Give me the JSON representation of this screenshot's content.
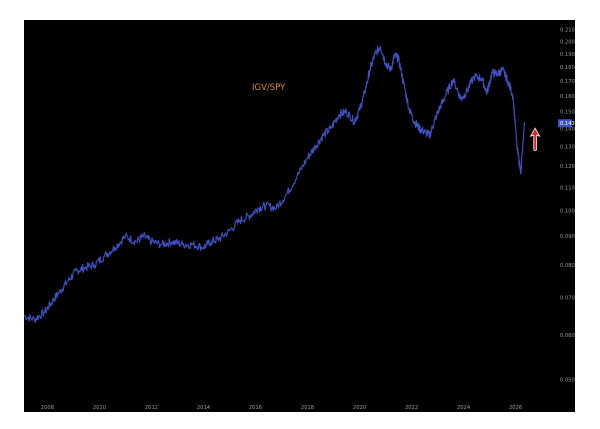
{
  "chart_data": {
    "type": "line",
    "title": "IGV/SPY",
    "xlabel": "",
    "ylabel": "",
    "x_tick_labels": [
      "2008",
      "2010",
      "2012",
      "2014",
      "2016",
      "2018",
      "2020",
      "2022",
      "2024",
      "2026"
    ],
    "y_tick_labels": [
      "0.050",
      "0.060",
      "0.070",
      "0.080",
      "0.090",
      "0.100",
      "0.110",
      "0.120",
      "0.130",
      "0.140",
      "0.150",
      "0.160",
      "0.170",
      "0.180",
      "0.190",
      "0.200",
      "0.210"
    ],
    "xlim": [
      2007.1,
      2027.4
    ],
    "ylim": [
      0.046,
      0.213
    ],
    "grid": false,
    "scale": "log",
    "series": [
      {
        "color": "#3f52c4",
        "x": [
          2007.1,
          2007.5,
          2007.9,
          2008.2,
          2008.5,
          2008.8,
          2009.1,
          2009.4,
          2009.8,
          2010.2,
          2010.6,
          2011.0,
          2011.4,
          2011.7,
          2012.0,
          2012.4,
          2012.8,
          2013.2,
          2013.6,
          2014.0,
          2014.3,
          2014.6,
          2015.0,
          2015.4,
          2015.8,
          2016.1,
          2016.4,
          2016.8,
          2017.2,
          2017.6,
          2018.0,
          2018.3,
          2018.6,
          2018.9,
          2019.2,
          2019.5,
          2019.8,
          2020.0,
          2020.2,
          2020.4,
          2020.6,
          2020.8,
          2021.0,
          2021.2,
          2021.35,
          2021.5,
          2021.7,
          2021.9,
          2022.1,
          2022.3,
          2022.5,
          2022.7,
          2022.9,
          2023.1,
          2023.3,
          2023.6,
          2023.9,
          2024.1,
          2024.4,
          2024.7,
          2024.9,
          2025.1,
          2025.3,
          2025.5,
          2025.7,
          2025.9,
          2026.05,
          2026.2,
          2026.35
        ],
        "values": [
          0.065,
          0.064,
          0.066,
          0.069,
          0.072,
          0.075,
          0.078,
          0.079,
          0.08,
          0.083,
          0.086,
          0.09,
          0.088,
          0.09,
          0.088,
          0.087,
          0.088,
          0.087,
          0.087,
          0.086,
          0.088,
          0.089,
          0.092,
          0.096,
          0.098,
          0.101,
          0.102,
          0.101,
          0.107,
          0.115,
          0.124,
          0.13,
          0.136,
          0.14,
          0.148,
          0.15,
          0.144,
          0.151,
          0.162,
          0.178,
          0.19,
          0.196,
          0.183,
          0.178,
          0.189,
          0.186,
          0.168,
          0.152,
          0.144,
          0.14,
          0.138,
          0.136,
          0.145,
          0.153,
          0.16,
          0.171,
          0.158,
          0.162,
          0.173,
          0.172,
          0.162,
          0.176,
          0.175,
          0.178,
          0.17,
          0.16,
          0.13,
          0.117,
          0.143
        ]
      }
    ],
    "annotations": [
      {
        "type": "arrow",
        "direction": "up",
        "color": "#e02020",
        "x": 2026.75,
        "y_from": 0.128,
        "y_to": 0.139
      },
      {
        "type": "last-value-marker",
        "label": "0.143",
        "color": "#3f52c4"
      }
    ]
  }
}
